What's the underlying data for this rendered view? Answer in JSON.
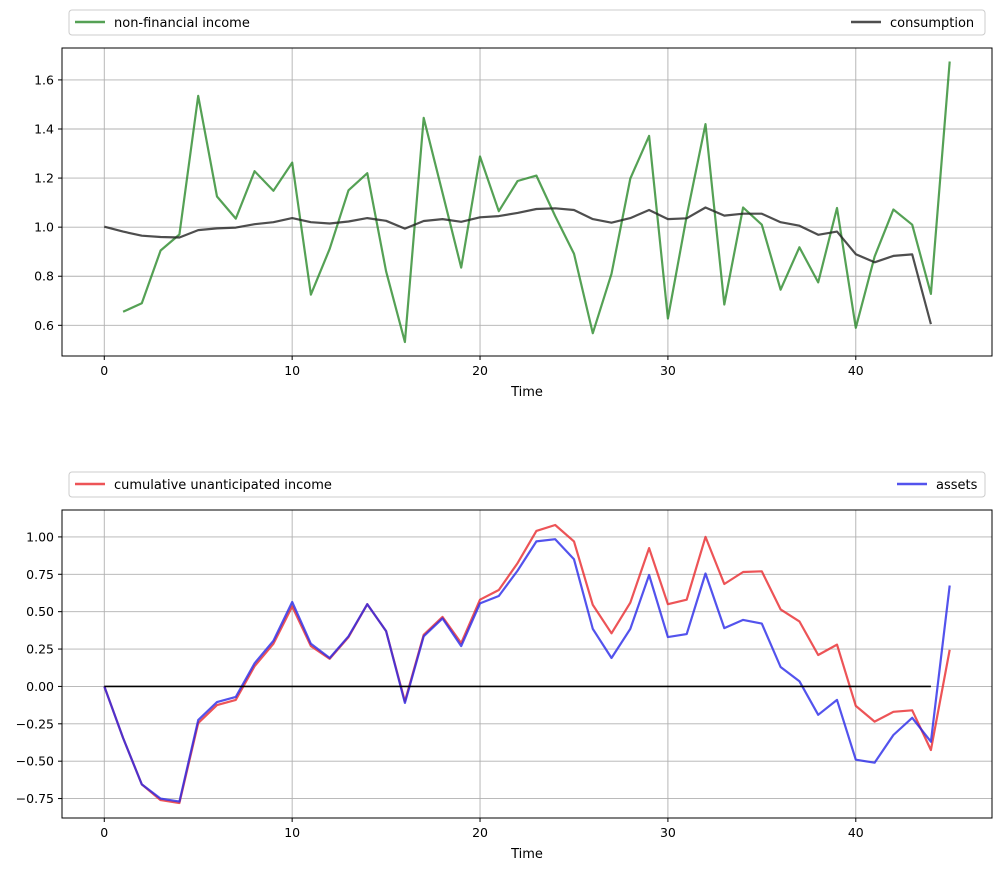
{
  "chart_data": [
    {
      "type": "line",
      "xlabel": "Time",
      "ylabel": "",
      "xlim": [
        -2.25,
        47.25
      ],
      "ylim": [
        0.475,
        1.73
      ],
      "xticks": [
        0,
        10,
        20,
        30,
        40
      ],
      "xtick_labels": [
        "0",
        "10",
        "20",
        "30",
        "40"
      ],
      "yticks": [
        0.6,
        0.8,
        1.0,
        1.2,
        1.4,
        1.6
      ],
      "ytick_labels": [
        "0.6",
        "0.8",
        "1.0",
        "1.2",
        "1.4",
        "1.6"
      ],
      "grid": true,
      "legend_placement": "above plot, spanning full width",
      "series": [
        {
          "name": "non-financial income",
          "color": "#2a8a2a",
          "x": [
            1,
            2,
            3,
            4,
            5,
            6,
            7,
            8,
            9,
            10,
            11,
            12,
            13,
            14,
            15,
            16,
            17,
            18,
            19,
            20,
            21,
            22,
            23,
            24,
            25,
            26,
            27,
            28,
            29,
            30,
            31,
            32,
            33,
            34,
            35,
            36,
            37,
            38,
            39,
            40,
            41,
            42,
            43,
            44,
            45
          ],
          "values": [
            0.655,
            0.69,
            0.905,
            0.97,
            1.535,
            1.125,
            1.035,
            1.228,
            1.148,
            1.263,
            0.725,
            0.912,
            1.15,
            1.22,
            0.82,
            0.532,
            1.445,
            1.14,
            0.835,
            1.288,
            1.065,
            1.188,
            1.21,
            1.045,
            0.892,
            0.568,
            0.81,
            1.198,
            1.372,
            0.628,
            1.045,
            1.42,
            0.685,
            1.08,
            1.01,
            0.745,
            0.918,
            0.775,
            1.078,
            0.59,
            0.88,
            1.072,
            1.01,
            0.728,
            1.675
          ]
        },
        {
          "name": "consumption",
          "color": "#222222",
          "x": [
            0,
            1,
            2,
            3,
            4,
            5,
            6,
            7,
            8,
            9,
            10,
            11,
            12,
            13,
            14,
            15,
            16,
            17,
            18,
            19,
            20,
            21,
            22,
            23,
            24,
            25,
            26,
            27,
            28,
            29,
            30,
            31,
            32,
            33,
            34,
            35,
            36,
            37,
            38,
            39,
            40,
            41,
            42,
            43,
            44
          ],
          "values": [
            1.002,
            0.982,
            0.965,
            0.96,
            0.958,
            0.988,
            0.995,
            0.998,
            1.012,
            1.02,
            1.037,
            1.02,
            1.015,
            1.023,
            1.037,
            1.026,
            0.994,
            1.025,
            1.033,
            1.022,
            1.04,
            1.045,
            1.058,
            1.074,
            1.077,
            1.07,
            1.033,
            1.018,
            1.037,
            1.07,
            1.033,
            1.036,
            1.08,
            1.047,
            1.055,
            1.055,
            1.02,
            1.006,
            0.969,
            0.982,
            0.89,
            0.857,
            0.883,
            0.889,
            0.605
          ]
        }
      ]
    },
    {
      "type": "line",
      "xlabel": "Time",
      "ylabel": "",
      "xlim": [
        -2.25,
        47.25
      ],
      "ylim": [
        -0.88,
        1.18
      ],
      "xticks": [
        0,
        10,
        20,
        30,
        40
      ],
      "xtick_labels": [
        "0",
        "10",
        "20",
        "30",
        "40"
      ],
      "yticks": [
        -0.75,
        -0.5,
        -0.25,
        0.0,
        0.25,
        0.5,
        0.75,
        1.0
      ],
      "ytick_labels": [
        "−0.75",
        "−0.50",
        "−0.25",
        "0.00",
        "0.25",
        "0.50",
        "0.75",
        "1.00"
      ],
      "grid": true,
      "legend_placement": "above plot, spanning full width",
      "series": [
        {
          "name": "cumulative unanticipated income",
          "color": "#e8292d",
          "x": [
            0,
            1,
            2,
            3,
            4,
            5,
            6,
            7,
            8,
            9,
            10,
            11,
            12,
            13,
            14,
            15,
            16,
            17,
            18,
            19,
            20,
            21,
            22,
            23,
            24,
            25,
            26,
            27,
            28,
            29,
            30,
            31,
            32,
            33,
            34,
            35,
            36,
            37,
            38,
            39,
            40,
            41,
            42,
            43,
            44,
            45
          ],
          "values": [
            0.0,
            -0.345,
            -0.655,
            -0.76,
            -0.78,
            -0.245,
            -0.125,
            -0.09,
            0.135,
            0.285,
            0.535,
            0.27,
            0.185,
            0.33,
            0.55,
            0.37,
            -0.1,
            0.345,
            0.465,
            0.29,
            0.58,
            0.645,
            0.825,
            1.04,
            1.08,
            0.97,
            0.545,
            0.355,
            0.56,
            0.925,
            0.55,
            0.58,
            1.0,
            0.685,
            0.765,
            0.77,
            0.515,
            0.435,
            0.21,
            0.28,
            -0.13,
            -0.235,
            -0.17,
            -0.16,
            -0.425,
            0.245
          ]
        },
        {
          "name": "assets",
          "color": "#2828e8",
          "x": [
            0,
            1,
            2,
            3,
            4,
            5,
            6,
            7,
            8,
            9,
            10,
            11,
            12,
            13,
            14,
            15,
            16,
            17,
            18,
            19,
            20,
            21,
            22,
            23,
            24,
            25,
            26,
            27,
            28,
            29,
            30,
            31,
            32,
            33,
            34,
            35,
            36,
            37,
            38,
            39,
            40,
            41,
            42,
            43,
            44,
            45
          ],
          "values": [
            0.0,
            -0.345,
            -0.655,
            -0.75,
            -0.77,
            -0.225,
            -0.105,
            -0.07,
            0.155,
            0.305,
            0.565,
            0.285,
            0.19,
            0.335,
            0.55,
            0.37,
            -0.11,
            0.335,
            0.455,
            0.27,
            0.555,
            0.605,
            0.775,
            0.97,
            0.985,
            0.85,
            0.385,
            0.19,
            0.385,
            0.745,
            0.33,
            0.35,
            0.755,
            0.39,
            0.445,
            0.42,
            0.13,
            0.035,
            -0.19,
            -0.09,
            -0.49,
            -0.51,
            -0.325,
            -0.21,
            -0.37,
            0.675
          ]
        },
        {
          "name": "",
          "color": "#000000",
          "x": [
            0,
            44
          ],
          "values": [
            0.0,
            0.0
          ]
        }
      ]
    }
  ]
}
